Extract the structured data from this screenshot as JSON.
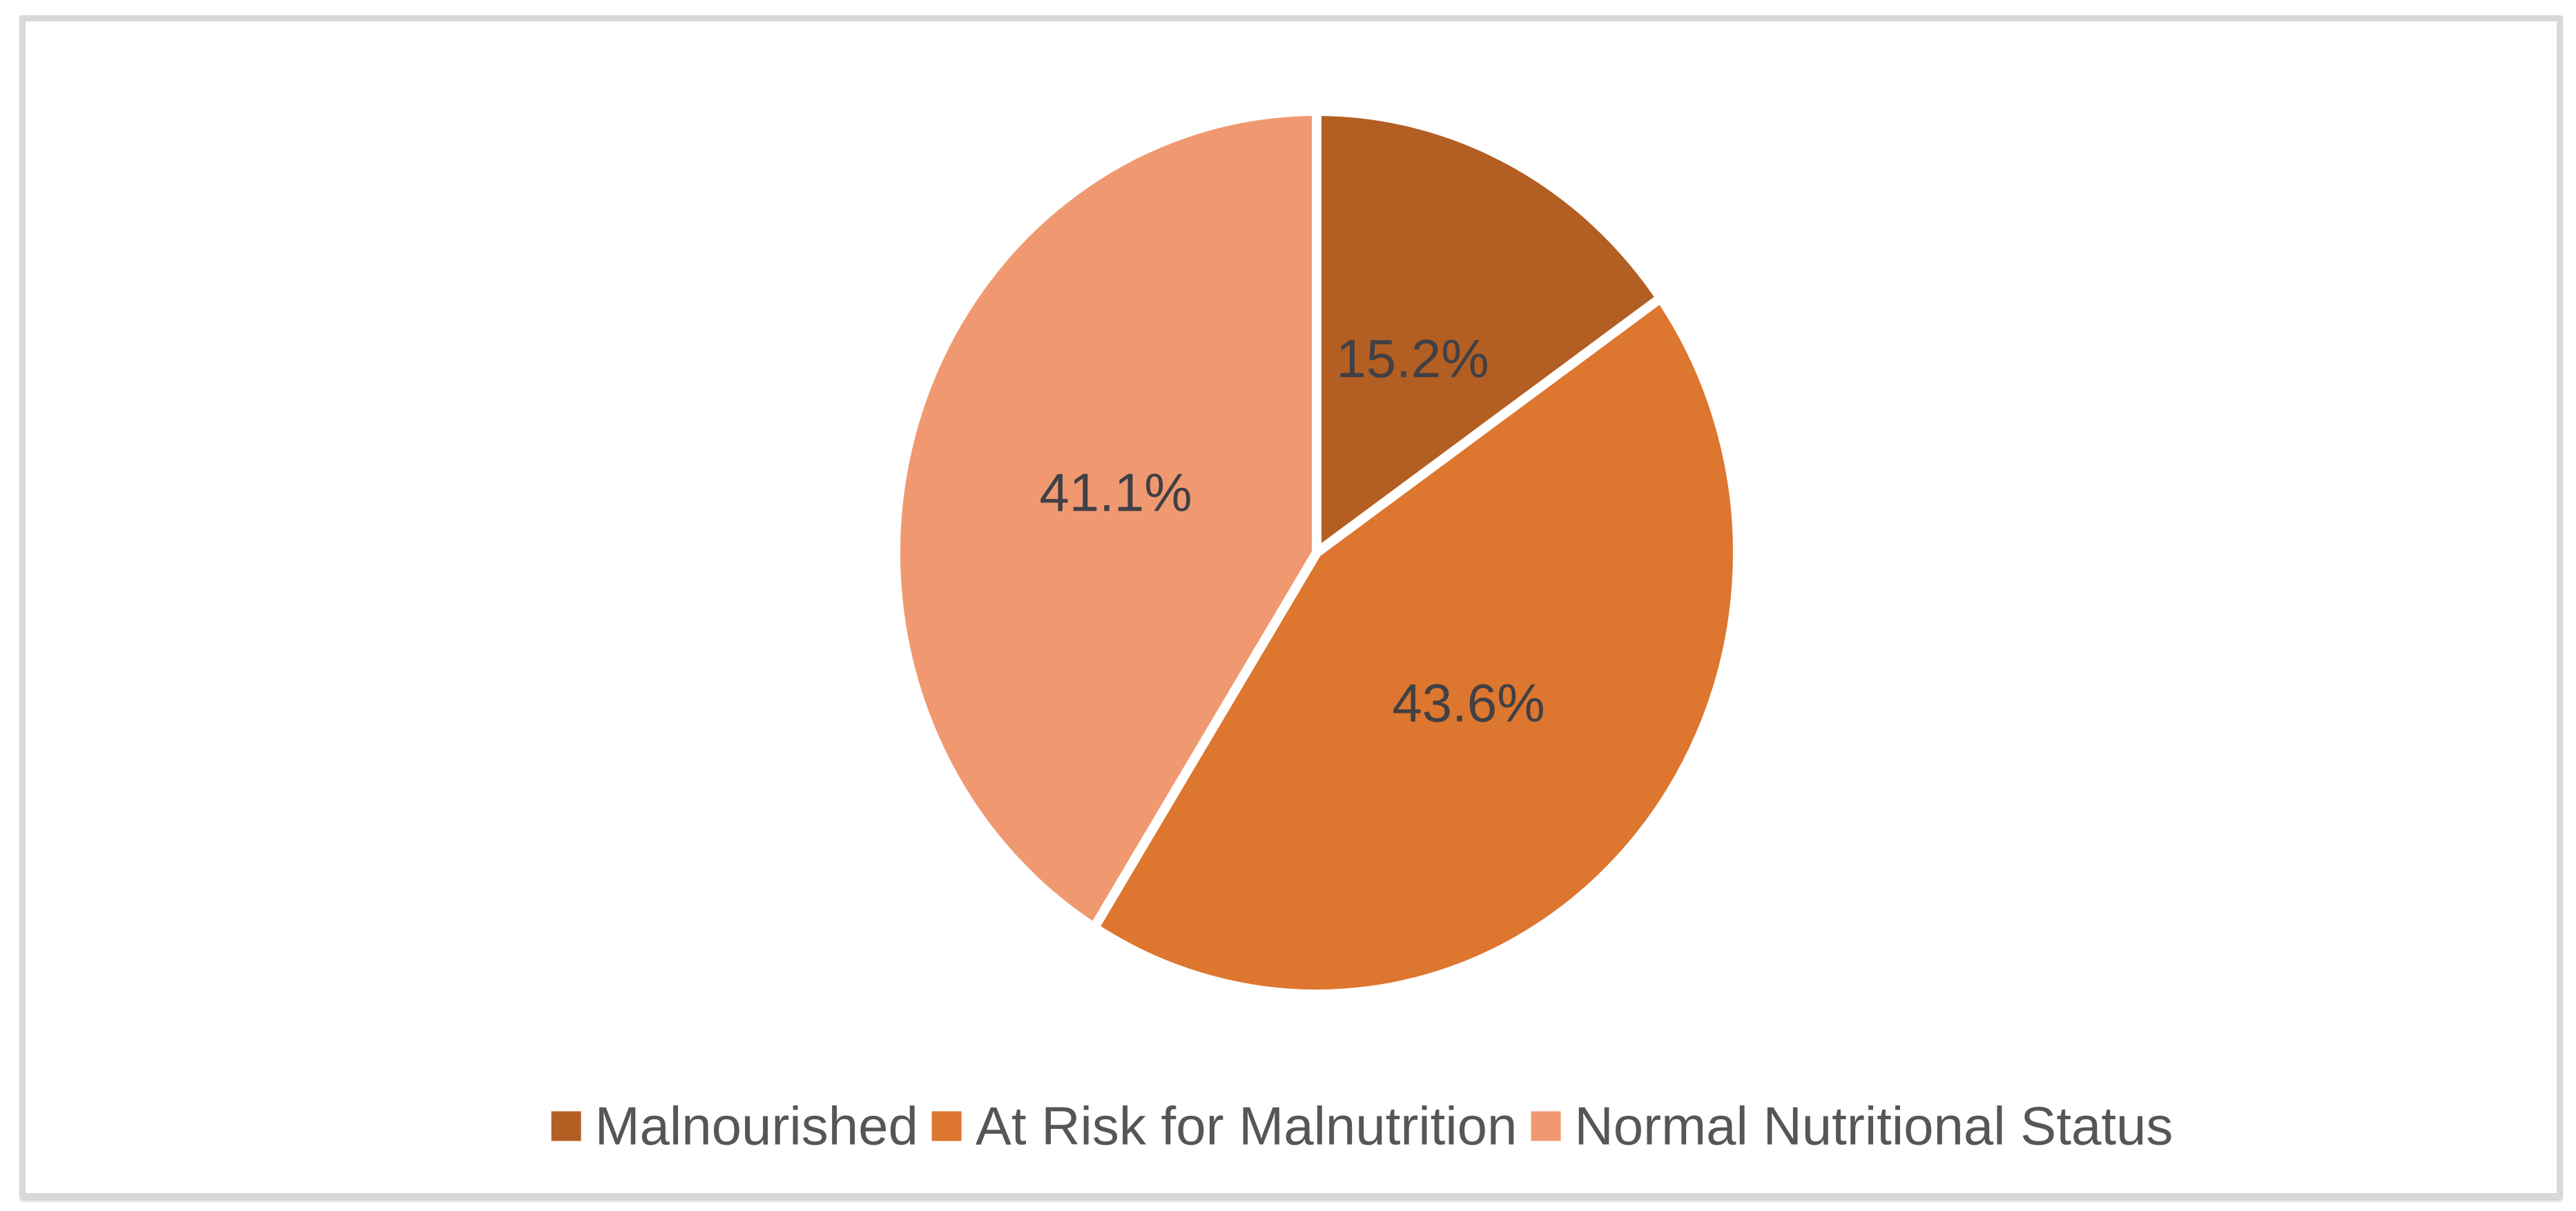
{
  "chart_data": {
    "type": "pie",
    "title": "",
    "slices": [
      {
        "label": "Malnourished",
        "value": 15.2,
        "display": "15.2%",
        "color": "#B35E22"
      },
      {
        "label": "At Risk for Malnutrition",
        "value": 43.6,
        "display": "43.6%",
        "color": "#DD762F"
      },
      {
        "label": "Normal Nutritional Status",
        "value": 41.1,
        "display": "41.1%",
        "color": "#F09971"
      }
    ],
    "start_angle_deg": 0,
    "direction": "clockwise",
    "separator_color": "#FFFFFF",
    "separator_width": 14,
    "data_label_color": "#404045",
    "legend_position": "bottom",
    "legend_text_color": "#565659"
  },
  "frame": {
    "background": "#FFFFFF",
    "border_color": "#D9D9D9"
  }
}
